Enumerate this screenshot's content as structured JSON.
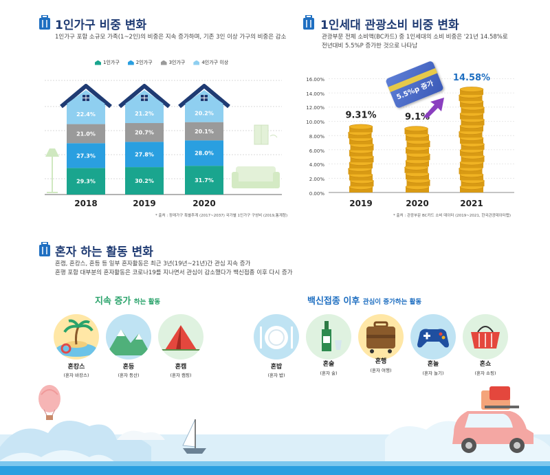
{
  "section1": {
    "title": "1인가구 비중 변화",
    "subtitle": "1인가구 포함 소규모 가족(1~2인)의 비중은 지속 증가하며, 기존 3인 이상 가구의 비중은 감소",
    "legend": [
      "1인가구",
      "2인가구",
      "3인가구",
      "4인가구 이상"
    ],
    "source": "* 출처 : 장래가구 특별추계 (2017~2037) 국가별 1인가구 구성비 (2019,통계청)"
  },
  "household_chart": {
    "type": "bar",
    "categories": [
      "2018",
      "2019",
      "2020"
    ],
    "series": [
      {
        "name": "1인가구",
        "values": [
          29.3,
          30.2,
          31.7
        ],
        "labels": [
          "29.3%",
          "30.2%",
          "31.7%"
        ],
        "color": "#1aa58e"
      },
      {
        "name": "2인가구",
        "values": [
          27.3,
          27.8,
          28.0
        ],
        "labels": [
          "27.3%",
          "27.8%",
          "28.0%"
        ],
        "color": "#2a9fe0"
      },
      {
        "name": "3인가구",
        "values": [
          21.0,
          20.7,
          20.1
        ],
        "labels": [
          "21.0%",
          "20.7%",
          "20.1%"
        ],
        "color": "#9a9a9a"
      },
      {
        "name": "4인가구 이상",
        "values": [
          22.4,
          21.2,
          20.2
        ],
        "labels": [
          "22.4%",
          "21.2%",
          "20.2%"
        ],
        "color": "#8fcff0"
      }
    ]
  },
  "section2": {
    "title": "1인세대 관광소비 비중 변화",
    "subtitle_line1": "관광부문 전체 소비액(BC카드) 중 1인세대의 소비 비중은 '21년 14.58%로",
    "subtitle_line2": "전년대비 5.5%P 증가한 것으로 나타남",
    "card_text": "5.5%p 증가",
    "source": "* 출처 : 관광부문 BC카드 소비 데이터 (2019~2021, 한국관광데이터랩)"
  },
  "tourism_chart": {
    "type": "bar",
    "categories": [
      "2019",
      "2020",
      "2021"
    ],
    "values": [
      9.31,
      9.1,
      14.58
    ],
    "labels": [
      "9.31%",
      "9.1%",
      "14.58%"
    ],
    "label_colors": [
      "#222222",
      "#222222",
      "#1f6fc1"
    ],
    "yticks": [
      "0.00%",
      "2.00%",
      "4.00%",
      "6.00%",
      "8.00%",
      "10.00%",
      "12.00%",
      "14.00%",
      "16.00%"
    ],
    "ylim": [
      0,
      16
    ]
  },
  "section3": {
    "title": "혼자 하는 활동 변화",
    "subtitle_line1": "혼캠, 혼캉스, 혼등 등 일부 혼자활동은 최근 3년(19년~21년)간 관심 지속 증가",
    "subtitle_line2": "혼행 포함 대부분의 혼자활동은 코로나19를 지나면서 관심이 감소했다가 백신접종 이후 다시 증가",
    "group1_main": "지속 증가",
    "group1_tail": "하는 활동",
    "group2_main": "백신접종 이후",
    "group2_tail": "관심이 증가하는 활동",
    "activities1": [
      {
        "name": "혼캉스",
        "sub": "(혼자 바캉스)",
        "icon": "island-icon"
      },
      {
        "name": "혼등",
        "sub": "(혼자 등산)",
        "icon": "mountain-icon"
      },
      {
        "name": "혼캠",
        "sub": "(혼자 캠핑)",
        "icon": "tent-icon"
      }
    ],
    "activities2": [
      {
        "name": "혼밥",
        "sub": "(혼자 밥)",
        "icon": "plate-icon"
      },
      {
        "name": "혼술",
        "sub": "(혼자 술)",
        "icon": "bottle-icon"
      },
      {
        "name": "혼행",
        "sub": "(혼자 여행)",
        "icon": "suitcase-icon"
      },
      {
        "name": "혼놀",
        "sub": "(혼자 놀기)",
        "icon": "gamepad-icon"
      },
      {
        "name": "혼쇼",
        "sub": "(혼자 쇼핑)",
        "icon": "basket-icon"
      }
    ]
  },
  "colors": {
    "title": "#1f3b73",
    "accent_blue": "#2a9fe0",
    "roof": "#1f3b73",
    "coin": "#f0b323",
    "green": "#2aa36b",
    "blue": "#1f6fc1"
  }
}
